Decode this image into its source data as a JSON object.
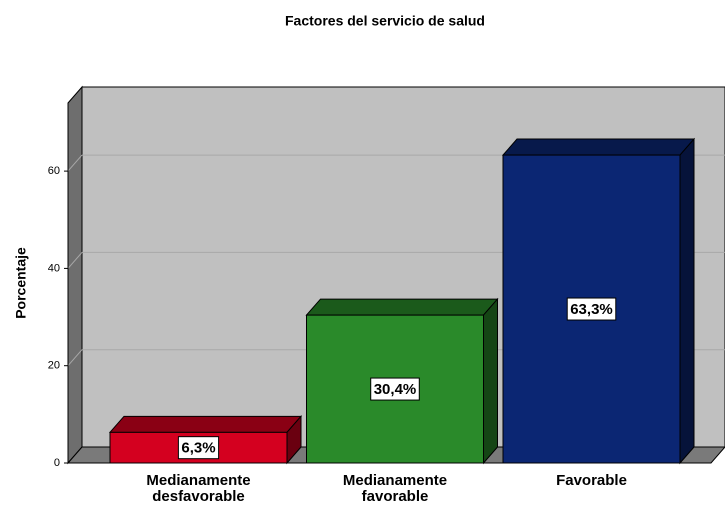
{
  "chart_data": {
    "type": "bar3d",
    "title": "Factores del servicio de salud",
    "y_label": "Porcentaje",
    "categories": [
      "Medianamente desfavorable",
      "Medianamente favorable",
      "Favorable"
    ],
    "values": [
      6.3,
      30.4,
      63.3
    ],
    "value_labels": [
      "6,3%",
      "30,4%",
      "63,3%"
    ],
    "colors": [
      "#d4001f",
      "#2a8a2a",
      "#0b2673"
    ],
    "ylim": [
      0,
      74
    ],
    "yticks": [
      0,
      20,
      40,
      60
    ],
    "grid": true
  }
}
